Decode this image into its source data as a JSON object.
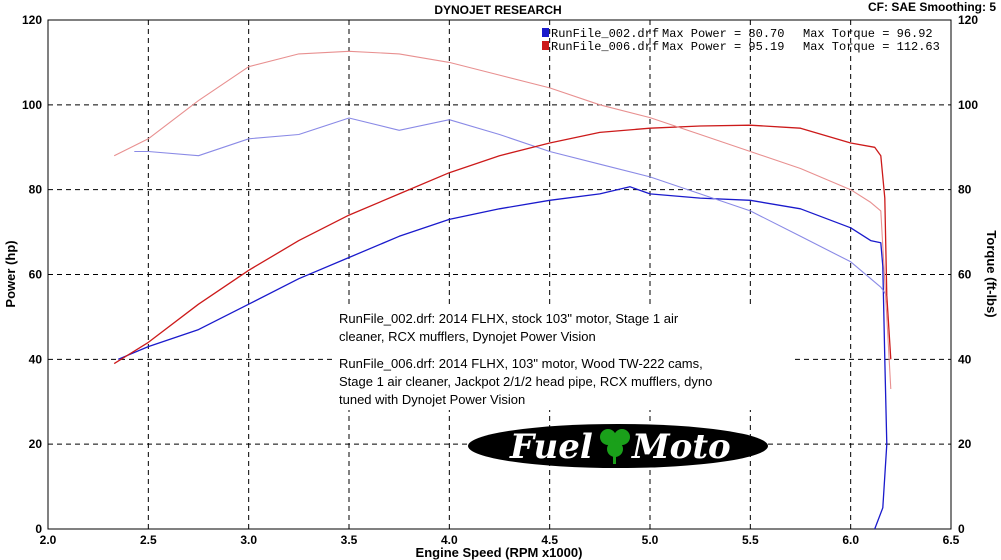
{
  "header": {
    "title": "DYNOJET RESEARCH",
    "cf_label": "CF: SAE  Smoothing: 5"
  },
  "legend": [
    {
      "run": "RunFile_002.drf",
      "power_text": "Max Power = 80.70",
      "torque_text": "Max Torque = 96.92",
      "color": "#1a1acc"
    },
    {
      "run": "RunFile_006.drf",
      "power_text": "Max Power = 95.19",
      "torque_text": "Max Torque = 112.63",
      "color": "#cc1a1a"
    }
  ],
  "notes": {
    "run002": [
      "RunFile_002.drf: 2014 FLHX, stock 103\" motor, Stage 1 air",
      "cleaner, RCX mufflers, Dynojet Power Vision"
    ],
    "run006": [
      "RunFile_006.drf: 2014 FLHX, 103\" motor, Wood TW-222 cams,",
      "Stage 1 air cleaner, Jackpot 2/1/2 head pipe, RCX mufflers, dyno",
      "tuned with Dynojet Power Vision"
    ]
  },
  "logo": {
    "text_left": "Fuel",
    "text_right": "Moto"
  },
  "colors": {
    "power_002": "#1a1acc",
    "torque_002": "#8a8ae6",
    "power_006": "#cc1a1a",
    "torque_006": "#e89090"
  },
  "chart_data": {
    "type": "line",
    "xlabel": "Engine Speed (RPM x1000)",
    "ylabel": "Power (hp)",
    "ylabel_right": "Torque (ft-lbs)",
    "xlim": [
      2.0,
      6.5
    ],
    "ylim": [
      0,
      120
    ],
    "x_ticks": [
      "2.0",
      "2.5",
      "3.0",
      "3.5",
      "4.0",
      "4.5",
      "5.0",
      "5.5",
      "6.0",
      "6.5"
    ],
    "y_ticks": [
      "0",
      "20",
      "40",
      "60",
      "80",
      "100",
      "120"
    ],
    "grid": true,
    "series": [
      {
        "name": "RunFile_002.drf Power",
        "color": "#1a1acc",
        "x": [
          2.35,
          2.5,
          2.75,
          3.0,
          3.25,
          3.5,
          3.75,
          4.0,
          4.25,
          4.5,
          4.75,
          4.9,
          5.0,
          5.25,
          5.5,
          5.75,
          6.0,
          6.1,
          6.15,
          6.16,
          6.17,
          6.18,
          6.16,
          6.12
        ],
        "y": [
          40,
          43,
          47,
          53,
          59,
          64,
          69,
          73,
          75.5,
          77.5,
          79,
          80.7,
          79,
          78,
          77.5,
          75.5,
          71,
          68,
          67.5,
          62,
          40,
          20,
          5,
          0
        ]
      },
      {
        "name": "RunFile_002.drf Torque",
        "color": "#8a8ae6",
        "x": [
          2.43,
          2.5,
          2.75,
          3.0,
          3.25,
          3.5,
          3.75,
          4.0,
          4.25,
          4.5,
          4.75,
          5.0,
          5.25,
          5.5,
          5.75,
          6.0,
          6.1,
          6.15,
          6.18
        ],
        "y": [
          89,
          89,
          88,
          92,
          93,
          96.9,
          94,
          96.5,
          93,
          89,
          86,
          83,
          79,
          75,
          69,
          63,
          59,
          57,
          55
        ]
      },
      {
        "name": "RunFile_006.drf Power",
        "color": "#cc1a1a",
        "x": [
          2.33,
          2.5,
          2.75,
          3.0,
          3.25,
          3.5,
          3.75,
          4.0,
          4.25,
          4.5,
          4.75,
          5.0,
          5.25,
          5.5,
          5.75,
          6.0,
          6.12,
          6.15,
          6.17,
          6.18,
          6.2
        ],
        "y": [
          39,
          44,
          53,
          61,
          68,
          74,
          79,
          84,
          88,
          91,
          93.5,
          94.5,
          95,
          95.19,
          94.5,
          91,
          90,
          88,
          78,
          55,
          40
        ]
      },
      {
        "name": "RunFile_006.drf Torque",
        "color": "#e89090",
        "x": [
          2.33,
          2.5,
          2.75,
          3.0,
          3.25,
          3.5,
          3.75,
          4.0,
          4.25,
          4.5,
          4.75,
          5.0,
          5.25,
          5.5,
          5.75,
          6.0,
          6.1,
          6.15,
          6.18,
          6.2
        ],
        "y": [
          88,
          92,
          101,
          109,
          112,
          112.63,
          112,
          110,
          107,
          104,
          100,
          97,
          93,
          89,
          85,
          80,
          77,
          75,
          50,
          33
        ]
      }
    ]
  }
}
